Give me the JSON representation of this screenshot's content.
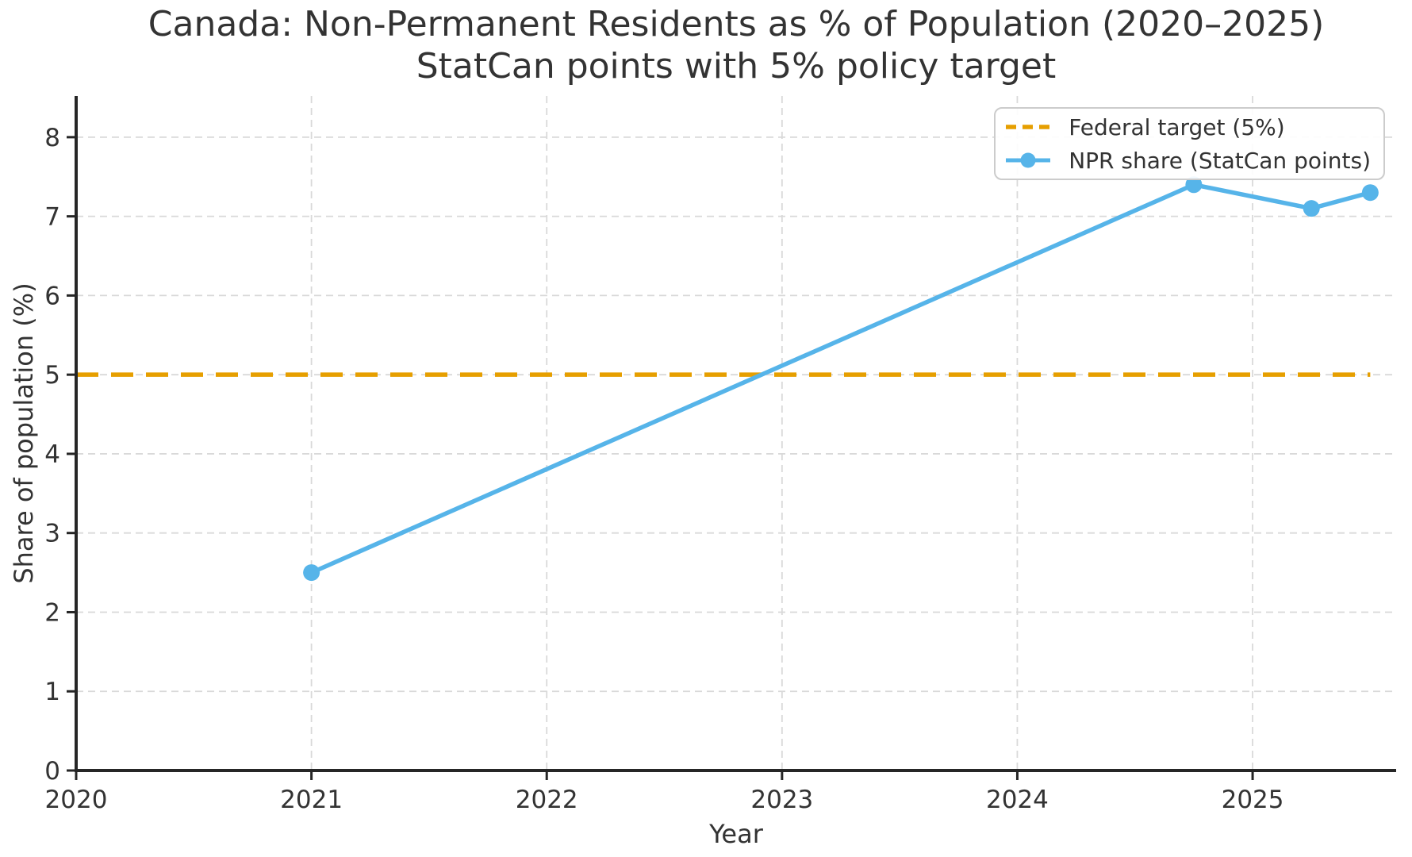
{
  "chart_data": {
    "type": "line",
    "title": "Canada: Non-Permanent Residents as % of Population (2020–2025)",
    "subtitle": "StatCan points with 5% policy target",
    "xlabel": "Year",
    "ylabel": "Share of population (%)",
    "xlim": [
      2020,
      2025.61
    ],
    "ylim": [
      0,
      8.52
    ],
    "xticks": [
      2020,
      2021,
      2022,
      2023,
      2024,
      2025
    ],
    "yticks": [
      0,
      1,
      2,
      3,
      4,
      5,
      6,
      7,
      8
    ],
    "grid": true,
    "legend_position": "upper right",
    "series": [
      {
        "name": "Federal target (5%)",
        "type": "hline",
        "style": "dashed",
        "color": "#E69F00",
        "y": 5,
        "x_start": 2020,
        "x_end": 2025.5
      },
      {
        "name": "NPR share (StatCan points)",
        "type": "line",
        "marker": "circle",
        "color": "#56B4E9",
        "x": [
          2021,
          2024.75,
          2025.25,
          2025.5
        ],
        "y": [
          2.5,
          7.4,
          7.1,
          7.3
        ]
      }
    ],
    "colors": {
      "text": "#333333",
      "axis": "#262626",
      "grid": "#d9d9d9",
      "background": "#ffffff"
    }
  }
}
